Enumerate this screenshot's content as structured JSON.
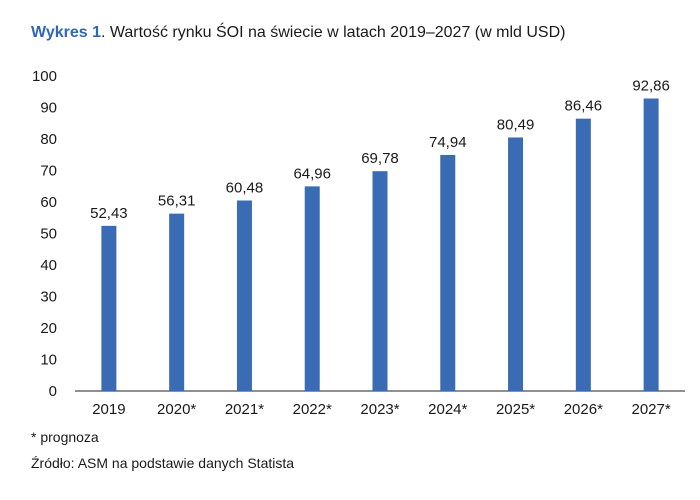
{
  "title": {
    "lead": "Wykres 1",
    "rest": ". Wartość rynku ŚOI na świecie w latach 2019–2027 (w mld USD)"
  },
  "chart_data": {
    "type": "bar",
    "categories": [
      "2019",
      "2020*",
      "2021*",
      "2022*",
      "2023*",
      "2024*",
      "2025*",
      "2026*",
      "2027*"
    ],
    "values": [
      52.43,
      56.31,
      60.48,
      64.96,
      69.78,
      74.94,
      80.49,
      86.46,
      92.86
    ],
    "value_labels": [
      "52,43",
      "56,31",
      "60,48",
      "64,96",
      "69,78",
      "74,94",
      "80,49",
      "86,46",
      "92,86"
    ],
    "y_ticks": [
      "0",
      "10",
      "20",
      "30",
      "40",
      "50",
      "60",
      "70",
      "80",
      "90",
      "100"
    ],
    "ylim": [
      0,
      100
    ],
    "grid": false,
    "bar_color": "#3a6cb5",
    "xlabel": "",
    "ylabel": ""
  },
  "notes": {
    "forecast": "* prognoza",
    "source": "Źródło: ASM na podstawie danych Statista"
  }
}
